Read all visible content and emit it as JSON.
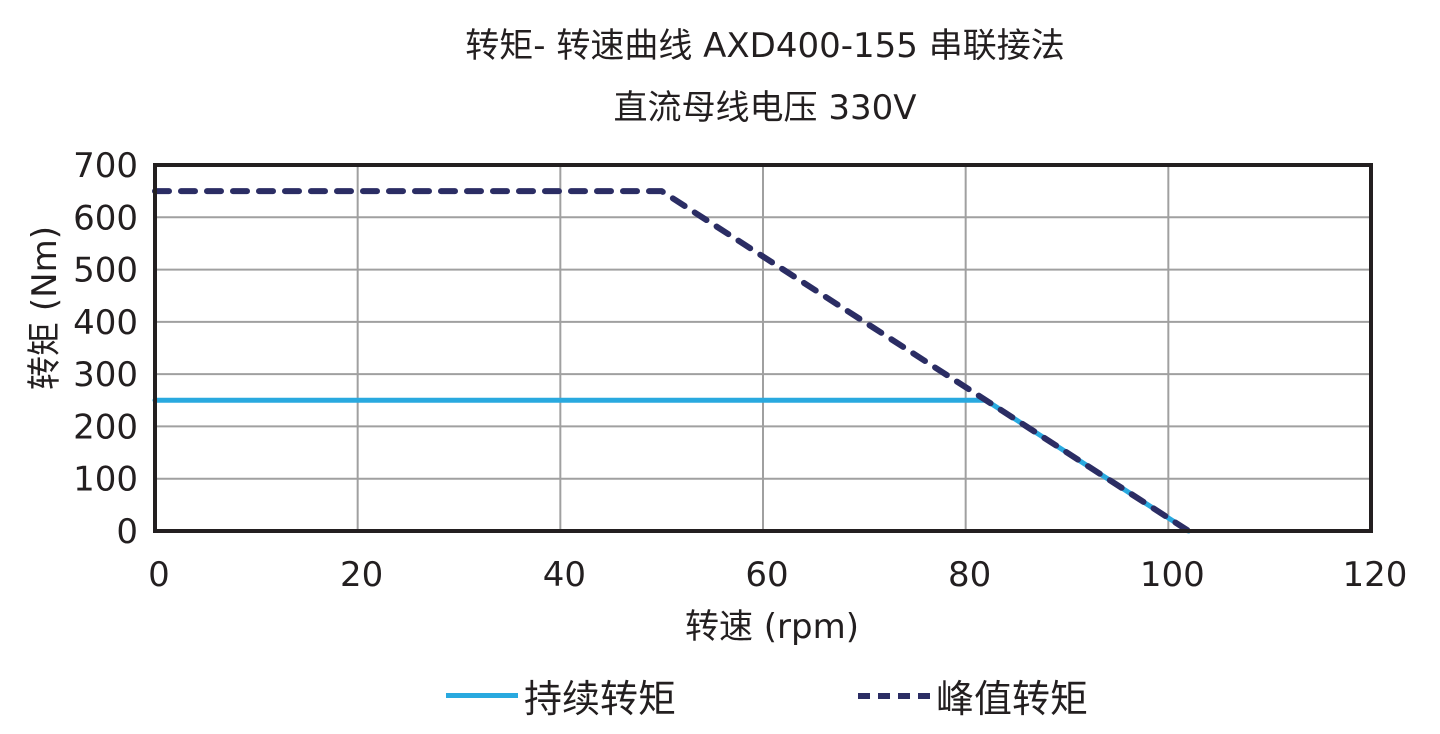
{
  "title": {
    "line1": "转矩- 转速曲线 AXD400-155 串联接法",
    "line2": "直流母线电压 330V"
  },
  "colors": {
    "continuous": "#29a9df",
    "peak": "#2b2d64",
    "grid": "#a0a0a0",
    "axis": "#231f20"
  },
  "legend": {
    "continuous_label": "持续转矩",
    "peak_label": "峰值转矩"
  },
  "chart_data": {
    "type": "line",
    "title": "转矩- 转速曲线 AXD400-155 串联接法 / 直流母线电压 330V",
    "xlabel": "转速 (rpm)",
    "ylabel": "转矩 (Nm)",
    "xlim": [
      0,
      120
    ],
    "ylim": [
      0,
      700
    ],
    "xticks": [
      0,
      20,
      40,
      60,
      80,
      100,
      120
    ],
    "yticks": [
      0,
      100,
      200,
      300,
      400,
      500,
      600,
      700
    ],
    "grid": true,
    "legend_position": "bottom",
    "series": [
      {
        "name": "持续转矩",
        "style": "solid",
        "color": "#29a9df",
        "x": [
          0,
          82,
          102
        ],
        "y": [
          250,
          250,
          0
        ]
      },
      {
        "name": "峰值转矩",
        "style": "dashed",
        "color": "#2b2d64",
        "x": [
          0,
          50,
          102
        ],
        "y": [
          650,
          650,
          0
        ]
      }
    ]
  }
}
